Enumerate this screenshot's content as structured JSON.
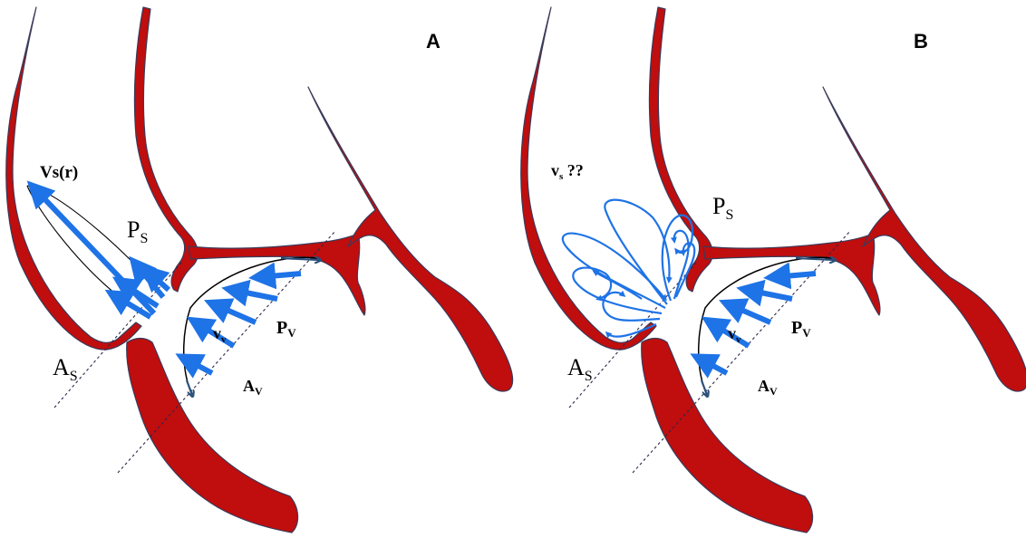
{
  "panels": [
    {
      "letter": "A",
      "jet_label": "Vs(r)",
      "ps_main": "P",
      "ps_sub": "S",
      "as_main": "A",
      "as_sub": "S",
      "vv_main": "v",
      "vv_sub": "v",
      "pv_main": "P",
      "pv_sub": "V",
      "av_main": "A",
      "av_sub": "V"
    },
    {
      "letter": "B",
      "jet_main": "v",
      "jet_sub": "s",
      "jet_suffix": " ??",
      "ps_main": "P",
      "ps_sub": "S",
      "as_main": "A",
      "as_sub": "S",
      "vv_main": "v",
      "vv_sub": "v",
      "pv_main": "P",
      "pv_sub": "V",
      "av_main": "A",
      "av_sub": "V"
    }
  ],
  "colors": {
    "tissue": "#c00d0d",
    "flow_arrows": "#1e73e6",
    "dashed_lines": "#2a2a4a"
  }
}
